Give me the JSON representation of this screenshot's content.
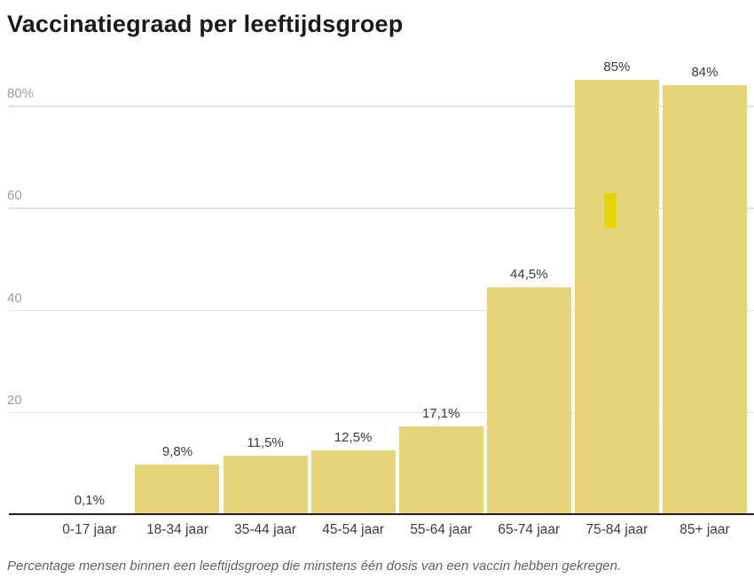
{
  "page": {
    "title": "Vaccinatiegraad per leeftijdsgroep",
    "caption": "Percentage mensen binnen een leeftijdsgroep die minstens één dosis van een vaccin hebben gekregen."
  },
  "colors": {
    "bar": "#e4d57d",
    "highlight_mark": "#e5d403",
    "gridline": "#e2e2e2",
    "axis": "#1f1f1f",
    "ytick_text": "#9e9e9e",
    "xtick_text": "#3d3d3d",
    "value_text": "#3a3a3a",
    "title_text": "#1b1b1b",
    "caption_text": "#5f6368",
    "background": "#ffffff"
  },
  "chart_data": {
    "type": "bar",
    "title": "Vaccinatiegraad per leeftijdsgroep",
    "caption": "Percentage mensen binnen een leeftijdsgroep die minstens één dosis van een vaccin hebben gekregen.",
    "categories": [
      "0-17 jaar",
      "18-34 jaar",
      "35-44 jaar",
      "45-54 jaar",
      "55-64 jaar",
      "65-74 jaar",
      "75-84 jaar",
      "85+ jaar"
    ],
    "values": [
      0.1,
      9.8,
      11.5,
      12.5,
      17.1,
      44.5,
      85,
      84
    ],
    "value_labels": [
      "0,1%",
      "9,8%",
      "11,5%",
      "12,5%",
      "17,1%",
      "44,5%",
      "85%",
      "84%"
    ],
    "xlabel": "",
    "ylabel": "",
    "ylim": [
      0,
      90
    ],
    "yticks": [
      20,
      40,
      60,
      80
    ],
    "ytick_labels": [
      "20",
      "40",
      "60",
      "80%"
    ],
    "grid": true,
    "legend": false,
    "bar_color": "#e4d57d",
    "highlight_bar_index": 6
  }
}
